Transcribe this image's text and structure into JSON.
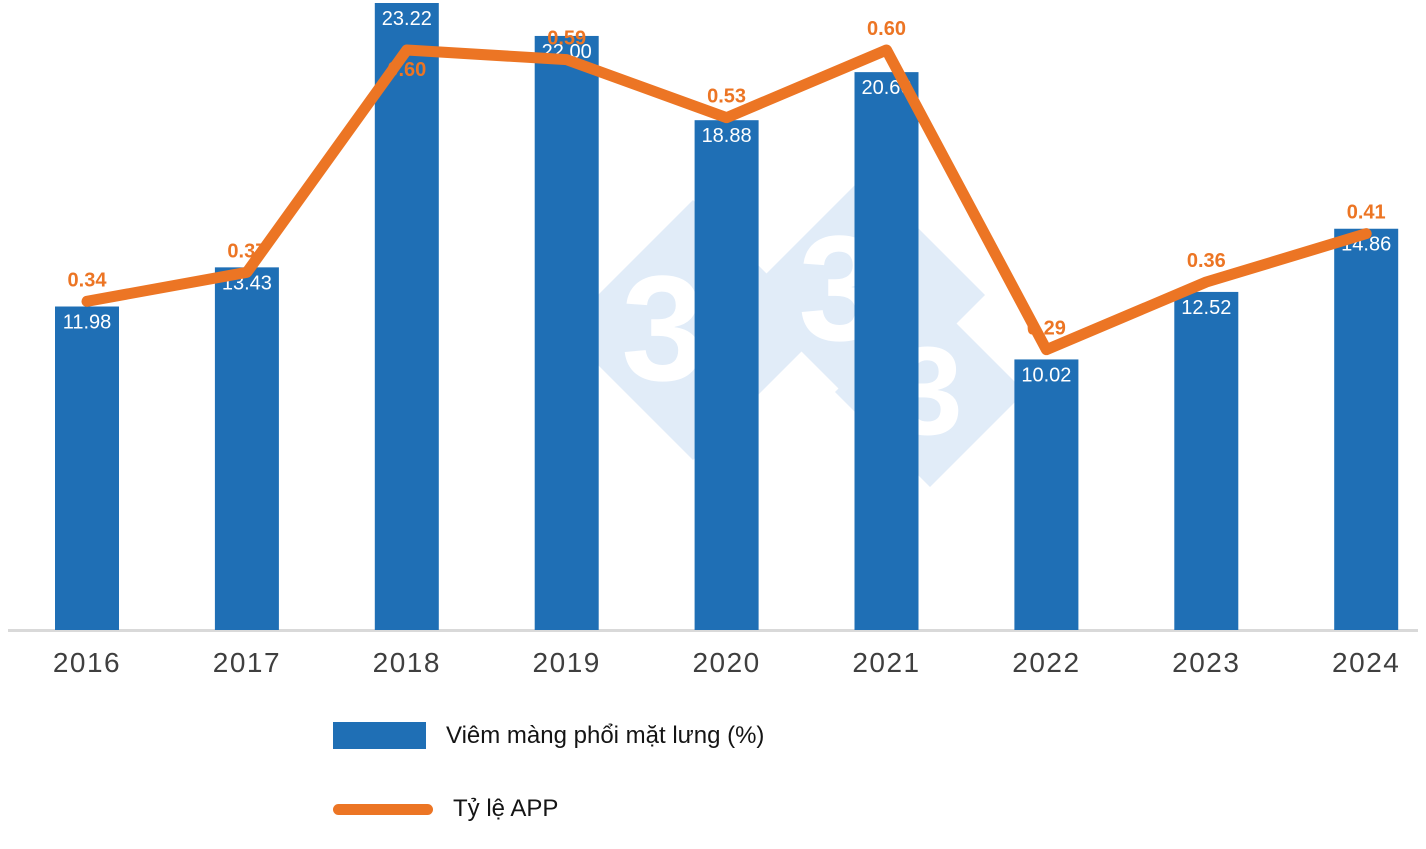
{
  "chart_data": {
    "type": "bar",
    "subtype": "bar-line-combo",
    "categories": [
      "2016",
      "2017",
      "2018",
      "2019",
      "2020",
      "2021",
      "2022",
      "2023",
      "2024"
    ],
    "series": [
      {
        "name": "Viêm màng phổi mặt lưng (%)",
        "type": "bar",
        "color": "#1F6FB5",
        "values": [
          11.98,
          13.43,
          23.22,
          22.0,
          18.88,
          20.66,
          10.02,
          12.52,
          14.86
        ],
        "value_labels": [
          "11.98",
          "13.43",
          "23.22",
          "22.00",
          "18.88",
          "20.66",
          "10.02",
          "12.52",
          "14.86"
        ],
        "value_label_color": "#FFFFFF"
      },
      {
        "name": "Tỷ lệ APP",
        "type": "line",
        "color": "#EC7524",
        "values": [
          0.34,
          0.37,
          0.6,
          0.59,
          0.53,
          0.6,
          0.29,
          0.36,
          0.41
        ],
        "value_labels": [
          "0.34",
          "0.37",
          "0.60",
          "0.59",
          "0.53",
          "0.60",
          "0.29",
          "0.36",
          "0.41"
        ],
        "value_label_color": "#EC7524",
        "labels_below_point_at": [
          2
        ]
      }
    ],
    "title": "",
    "xlabel": "",
    "ylabel": "",
    "grid": false,
    "legend_position": "bottom-left",
    "axis": {
      "baseline_color": "#D9D9D9",
      "category_label_color": "#3F3F3F"
    },
    "watermark": {
      "digits": [
        "3",
        "3",
        "3"
      ],
      "diamond_color": "#E1ECF8",
      "digit_color": "#FFFFFF"
    }
  }
}
